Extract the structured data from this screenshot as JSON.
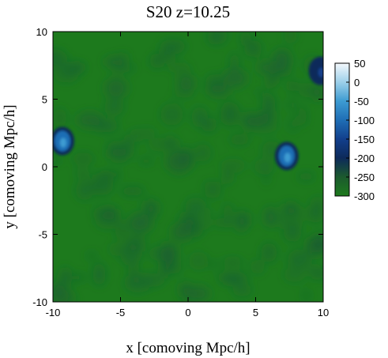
{
  "chart_data": {
    "type": "heatmap",
    "title": "S20 z=10.25",
    "xlabel": "x [comoving Mpc/h]",
    "ylabel": "y [comoving Mpc/h]",
    "xlim": [
      -10,
      10
    ],
    "ylim": [
      -10,
      10
    ],
    "x_ticks": [
      -10,
      -5,
      0,
      5,
      10
    ],
    "y_ticks": [
      -10,
      -5,
      0,
      5,
      10
    ],
    "x_tick_labels": [
      "-10",
      "-5",
      "0",
      "5",
      "10"
    ],
    "y_tick_labels": [
      "-10",
      "-5",
      "0",
      "5",
      "10"
    ],
    "colorbar": {
      "range": [
        -300,
        50
      ],
      "ticks": [
        50,
        0,
        -50,
        -100,
        -150,
        -200,
        -250,
        -300
      ],
      "tick_labels": [
        "50",
        "0",
        "-50",
        "-100",
        "-150",
        "-200",
        "-250",
        "-300"
      ],
      "colors": [
        "#1d7a1d",
        "#1c5a2e",
        "#0d2a5a",
        "#123f8c",
        "#1f6eb5",
        "#3d9bd2",
        "#9dd0ea",
        "#f4f8fc"
      ]
    },
    "background_value": -300,
    "features": [
      {
        "x": 7.3,
        "y": 0.8,
        "value": -120
      },
      {
        "x": -9.3,
        "y": 1.9,
        "value": -120
      },
      {
        "x": 9.8,
        "y": 7.1,
        "value": -190
      }
    ],
    "grid": false
  }
}
